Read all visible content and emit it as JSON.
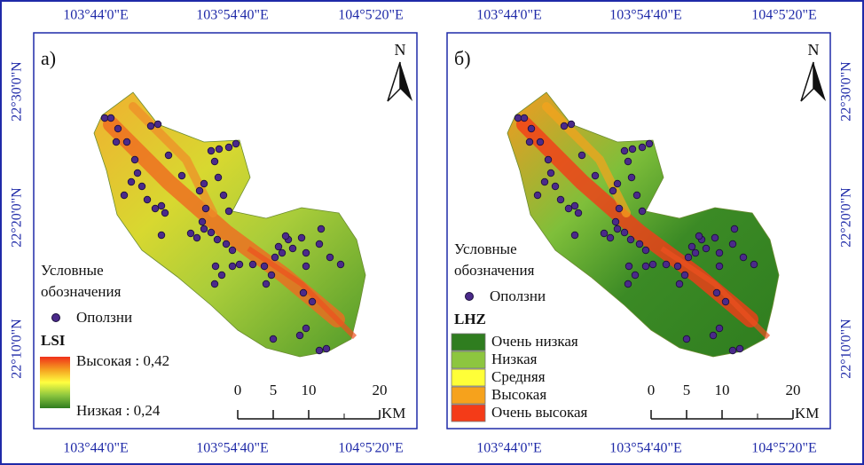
{
  "coordinates": {
    "lon": [
      "103°44'0\"E",
      "103°54'40\"E",
      "104°5'20\"E"
    ],
    "lat": [
      "22°30'0\"N",
      "22°20'0\"N",
      "22°10'0\"N"
    ]
  },
  "panels": [
    {
      "label": "а)",
      "north": "N",
      "legend": {
        "title_lines": [
          "Условные",
          "обозначения"
        ],
        "points": "Оползни",
        "index": "LSI",
        "high": "Высокая : 0,42",
        "low": "Низкая : 0,24"
      },
      "scale": {
        "ticks": [
          0,
          5,
          10,
          20
        ],
        "unit": "KM"
      }
    },
    {
      "label": "б)",
      "north": "N",
      "legend": {
        "title_lines": [
          "Условные",
          "обозначения"
        ],
        "points": "Оползни",
        "index": "LHZ",
        "classes": [
          {
            "label": "Очень низкая",
            "color": "#2f7d1f"
          },
          {
            "label": "Низкая",
            "color": "#8dc63f"
          },
          {
            "label": "Средняя",
            "color": "#ffff38"
          },
          {
            "label": "Высокая",
            "color": "#f6a21c"
          },
          {
            "label": "Очень высокая",
            "color": "#f43b18"
          }
        ]
      },
      "scale": {
        "ticks": [
          0,
          5,
          10,
          20
        ],
        "unit": "KM"
      }
    }
  ]
}
